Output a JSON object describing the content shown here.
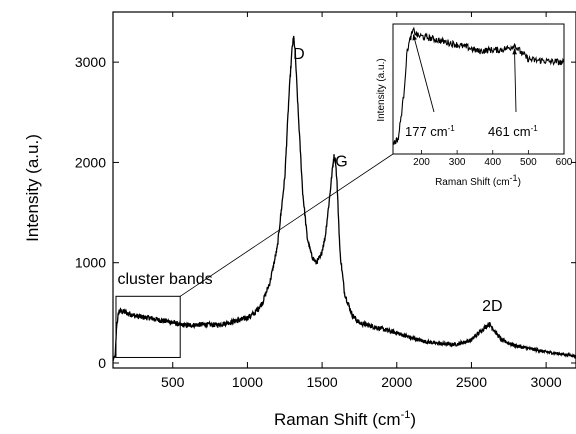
{
  "chart_data": {
    "type": "line",
    "xlabel": "Raman Shift (cm",
    "xlabel_sup": "-1",
    "xlabel_close": ")",
    "ylabel": "Intensity (a.u.)",
    "xlim": [
      100,
      3200
    ],
    "ylim": [
      -50,
      3500
    ],
    "xticks": [
      500,
      1000,
      1500,
      2000,
      2500,
      3000
    ],
    "yticks": [
      0,
      1000,
      2000,
      3000
    ],
    "grid": false,
    "legend": "none",
    "line_color": "#000000",
    "series": [
      {
        "x": [
          100,
          115,
          125,
          140,
          170,
          200,
          250,
          300,
          350,
          400,
          450,
          500,
          550,
          600,
          700,
          800,
          900,
          1000,
          1050,
          1100,
          1150,
          1200,
          1250,
          1280,
          1300,
          1310,
          1320,
          1340,
          1370,
          1400,
          1430,
          1460,
          1490,
          1520,
          1550,
          1570,
          1580,
          1590,
          1600,
          1620,
          1650,
          1700,
          1750,
          1800,
          1900,
          2000,
          2100,
          2200,
          2300,
          2400,
          2500,
          2550,
          2600,
          2620,
          2650,
          2700,
          2800,
          2900,
          3000,
          3100,
          3200
        ],
        "values": [
          30,
          70,
          380,
          520,
          510,
          495,
          470,
          455,
          450,
          430,
          420,
          405,
          380,
          375,
          385,
          380,
          410,
          450,
          500,
          600,
          800,
          1150,
          1850,
          2700,
          3150,
          3250,
          3100,
          2500,
          1700,
          1250,
          1070,
          1000,
          1060,
          1250,
          1650,
          1950,
          2060,
          2020,
          1800,
          1100,
          700,
          480,
          400,
          380,
          340,
          300,
          250,
          210,
          190,
          185,
          230,
          300,
          370,
          390,
          330,
          230,
          170,
          140,
          110,
          90,
          70
        ]
      }
    ],
    "peak_labels": [
      {
        "text": "D",
        "x": 1345,
        "y": 3030
      },
      {
        "text": "G",
        "x": 1630,
        "y": 1960
      },
      {
        "text": "2D",
        "x": 2640,
        "y": 520
      }
    ],
    "annotation": {
      "text": "cluster bands",
      "x": 130,
      "y": 790
    },
    "highlight_box": {
      "x": [
        120,
        550
      ],
      "y": [
        55,
        665
      ]
    },
    "inset": {
      "xlabel": "Raman Shift (cm",
      "xlabel_sup": "-1",
      "xlabel_close": ")",
      "ylabel": "Intensity (a.u.)",
      "xlim": [
        120,
        600
      ],
      "ylim": [
        0,
        1
      ],
      "xticks": [
        200,
        300,
        400,
        500,
        600
      ],
      "series": [
        {
          "x": [
            120,
            135,
            150,
            160,
            170,
            177,
            190,
            210,
            240,
            270,
            300,
            330,
            360,
            390,
            420,
            450,
            461,
            480,
            500,
            520,
            540,
            560,
            580,
            600
          ],
          "values": [
            0.08,
            0.12,
            0.45,
            0.8,
            0.9,
            0.95,
            0.91,
            0.9,
            0.88,
            0.86,
            0.84,
            0.82,
            0.79,
            0.8,
            0.8,
            0.82,
            0.84,
            0.78,
            0.73,
            0.72,
            0.72,
            0.71,
            0.71,
            0.7
          ]
        }
      ],
      "annotations": [
        {
          "label": "177 cm",
          "sup": "-1",
          "x": 177,
          "y": 0.95
        },
        {
          "label": "461 cm",
          "sup": "-1",
          "x": 461,
          "y": 0.84
        }
      ]
    }
  }
}
